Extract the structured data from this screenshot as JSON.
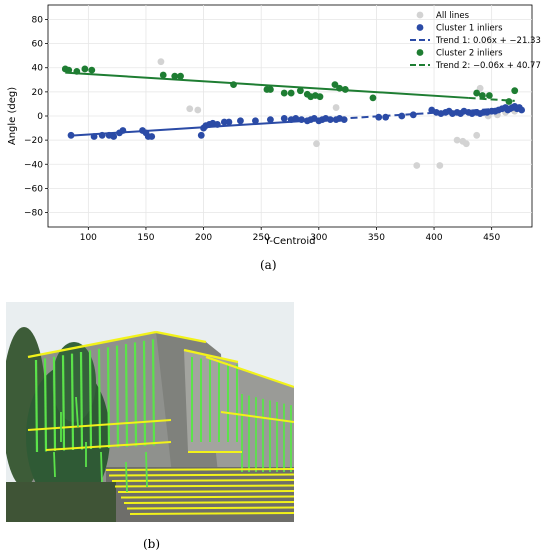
{
  "panel_a": {
    "caption": "(a)",
    "chart_data": {
      "type": "scatter",
      "xlabel": "Y-Centroid",
      "ylabel": "Angle (deg)",
      "xlim": [
        65,
        485
      ],
      "ylim": [
        -92,
        92
      ],
      "x_ticks": [
        100,
        150,
        200,
        250,
        300,
        350,
        400,
        450
      ],
      "y_ticks": [
        -80,
        -60,
        -40,
        -20,
        0,
        20,
        40,
        60,
        80
      ],
      "grid": true,
      "legend_position": "top-right",
      "legend": [
        {
          "label": "All lines",
          "kind": "marker",
          "color": "#d3d3d3"
        },
        {
          "label": "Cluster 1 inliers",
          "kind": "marker",
          "color": "#2b4ba6"
        },
        {
          "label": "Trend 1: 0.06x + −21.33",
          "kind": "dashed-line",
          "color": "#2b4ba6"
        },
        {
          "label": "Cluster 2 inliers",
          "kind": "marker",
          "color": "#1e7d32"
        },
        {
          "label": "Trend 2: −0.06x + 40.77",
          "kind": "dashed-line",
          "color": "#1e7d32"
        }
      ],
      "series": [
        {
          "name": "All lines",
          "color": "#d3d3d3",
          "points": [
            [
              163,
              45
            ],
            [
              188,
              6
            ],
            [
              195,
              5
            ],
            [
              298,
              -23
            ],
            [
              315,
              7
            ],
            [
              385,
              -41
            ],
            [
              405,
              -41
            ],
            [
              420,
              -20
            ],
            [
              425,
              -21
            ],
            [
              428,
              -23
            ],
            [
              437,
              -16
            ],
            [
              440,
              23
            ],
            [
              447,
              0
            ],
            [
              455,
              1
            ],
            [
              462,
              3
            ],
            [
              470,
              4
            ]
          ]
        },
        {
          "name": "Cluster 1 inliers",
          "color": "#2b4ba6",
          "points": [
            [
              85,
              -16
            ],
            [
              105,
              -17
            ],
            [
              112,
              -16
            ],
            [
              118,
              -16
            ],
            [
              122,
              -17
            ],
            [
              127,
              -14
            ],
            [
              130,
              -12
            ],
            [
              147,
              -12
            ],
            [
              150,
              -14
            ],
            [
              152,
              -17
            ],
            [
              155,
              -17
            ],
            [
              198,
              -16
            ],
            [
              200,
              -10
            ],
            [
              202,
              -8
            ],
            [
              205,
              -7
            ],
            [
              208,
              -6
            ],
            [
              212,
              -7
            ],
            [
              218,
              -5
            ],
            [
              222,
              -5
            ],
            [
              232,
              -4
            ],
            [
              245,
              -4
            ],
            [
              258,
              -3
            ],
            [
              270,
              -2
            ],
            [
              276,
              -3
            ],
            [
              280,
              -2
            ],
            [
              285,
              -3
            ],
            [
              290,
              -4
            ],
            [
              293,
              -3
            ],
            [
              296,
              -2
            ],
            [
              300,
              -4
            ],
            [
              303,
              -3
            ],
            [
              306,
              -2
            ],
            [
              310,
              -3
            ],
            [
              315,
              -3
            ],
            [
              318,
              -2
            ],
            [
              322,
              -3
            ],
            [
              352,
              -1
            ],
            [
              358,
              -1
            ],
            [
              372,
              0
            ],
            [
              382,
              1
            ],
            [
              398,
              5
            ],
            [
              402,
              3
            ],
            [
              406,
              2
            ],
            [
              410,
              3
            ],
            [
              413,
              4
            ],
            [
              416,
              2
            ],
            [
              420,
              3
            ],
            [
              423,
              2
            ],
            [
              426,
              4
            ],
            [
              430,
              3
            ],
            [
              433,
              2
            ],
            [
              437,
              3
            ],
            [
              440,
              2
            ],
            [
              443,
              3
            ],
            [
              446,
              3
            ],
            [
              450,
              4
            ],
            [
              453,
              4
            ],
            [
              456,
              5
            ],
            [
              459,
              6
            ],
            [
              462,
              7
            ],
            [
              464,
              5
            ],
            [
              466,
              6
            ],
            [
              468,
              7
            ],
            [
              470,
              8
            ],
            [
              472,
              6
            ],
            [
              474,
              7
            ],
            [
              476,
              5
            ]
          ]
        },
        {
          "name": "Cluster 2 inliers",
          "color": "#1e7d32",
          "points": [
            [
              80,
              39
            ],
            [
              83,
              38
            ],
            [
              90,
              37
            ],
            [
              97,
              39
            ],
            [
              103,
              38
            ],
            [
              165,
              34
            ],
            [
              175,
              33
            ],
            [
              180,
              33
            ],
            [
              226,
              26
            ],
            [
              255,
              22
            ],
            [
              258,
              22
            ],
            [
              270,
              19
            ],
            [
              276,
              19
            ],
            [
              284,
              21
            ],
            [
              290,
              18
            ],
            [
              293,
              16
            ],
            [
              297,
              17
            ],
            [
              301,
              16
            ],
            [
              314,
              26
            ],
            [
              318,
              23
            ],
            [
              323,
              22
            ],
            [
              347,
              15
            ],
            [
              437,
              19
            ],
            [
              442,
              17
            ],
            [
              448,
              17
            ],
            [
              465,
              12
            ],
            [
              470,
              21
            ]
          ]
        }
      ],
      "trends": [
        {
          "name": "Trend 1",
          "slope": 0.06,
          "intercept": -21.33,
          "color": "#2b4ba6",
          "x_range": [
            85,
            476
          ],
          "solid_until": 318
        },
        {
          "name": "Trend 2",
          "slope": -0.06,
          "intercept": 40.77,
          "color": "#1e7d32",
          "x_range": [
            80,
            470
          ],
          "solid_until": 430
        }
      ]
    }
  },
  "panel_b": {
    "caption": "(b)",
    "colors": {
      "sky": "#e9eef0",
      "building": "#8f918d",
      "tree": "#2f5a35",
      "line_green": "#5be34a",
      "line_yellow": "#f2f21a"
    }
  }
}
